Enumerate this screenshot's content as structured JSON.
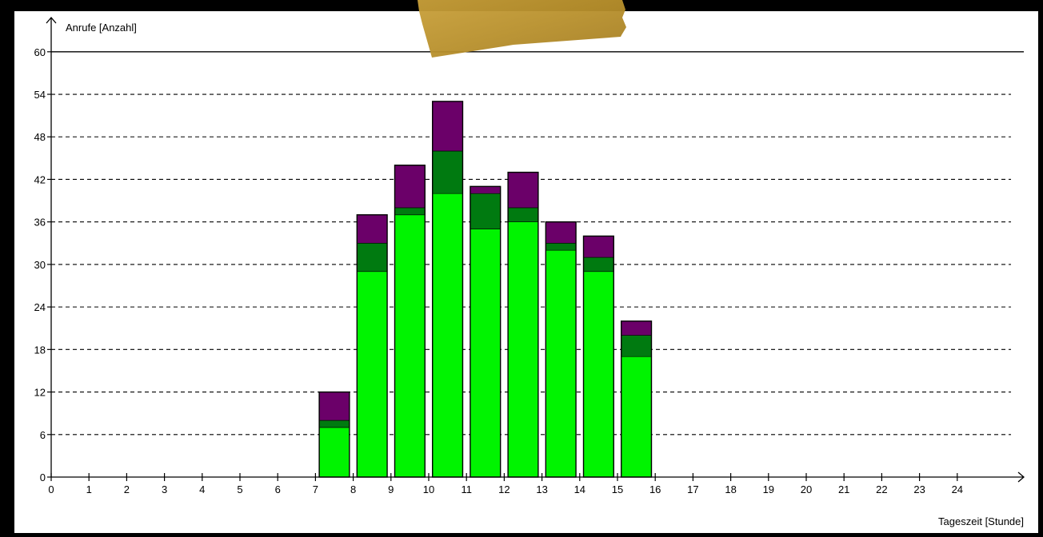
{
  "chart_data": {
    "type": "bar",
    "stacked": true,
    "ylabel": "Anrufe [Anzahl]",
    "xlabel": "Tageszeit [Stunde]",
    "ylim": [
      0,
      60
    ],
    "xlim": [
      0,
      25
    ],
    "y_ticks": [
      0,
      6,
      12,
      18,
      24,
      30,
      36,
      42,
      48,
      54,
      60
    ],
    "x_ticks": [
      0,
      1,
      2,
      3,
      4,
      5,
      6,
      7,
      8,
      9,
      10,
      11,
      12,
      13,
      14,
      15,
      16,
      17,
      18,
      19,
      20,
      21,
      22,
      23,
      24
    ],
    "grid": "horizontal-dashed",
    "bars": [
      {
        "from": 7.1,
        "to": 7.9,
        "values": [
          7,
          1,
          4
        ]
      },
      {
        "from": 8.1,
        "to": 8.9,
        "values": [
          29,
          4,
          4
        ]
      },
      {
        "from": 9.1,
        "to": 9.9,
        "values": [
          37,
          1,
          6
        ]
      },
      {
        "from": 10.1,
        "to": 10.9,
        "values": [
          40,
          6,
          7
        ]
      },
      {
        "from": 11.1,
        "to": 11.9,
        "values": [
          35,
          5,
          1
        ]
      },
      {
        "from": 12.1,
        "to": 12.9,
        "values": [
          36,
          2,
          5
        ]
      },
      {
        "from": 13.1,
        "to": 13.9,
        "values": [
          32,
          1,
          3
        ]
      },
      {
        "from": 14.1,
        "to": 14.9,
        "values": [
          29,
          2,
          3
        ]
      },
      {
        "from": 15.1,
        "to": 15.9,
        "values": [
          17,
          3,
          2
        ]
      }
    ],
    "segment_colors": [
      "#00f400",
      "#007a10",
      "#6b0069"
    ]
  }
}
